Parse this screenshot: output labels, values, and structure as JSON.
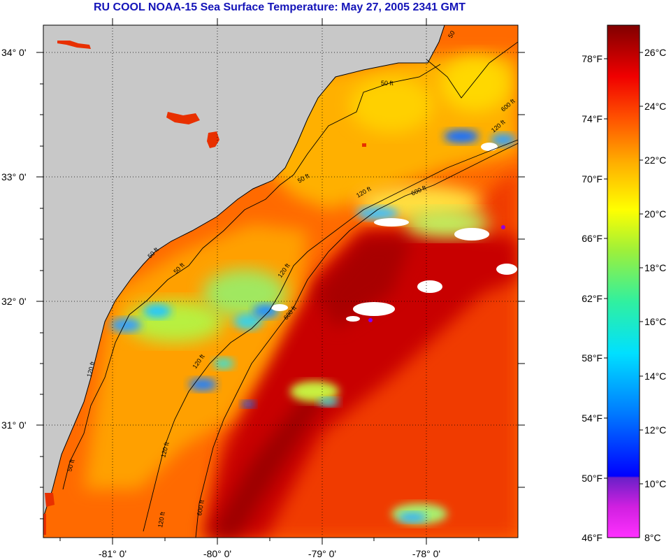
{
  "title": "RU COOL  NOAA-15  Sea Surface Temperature:  May 27, 2005 2341 GMT",
  "map": {
    "lat_labels": [
      "34° 0'",
      "33° 0'",
      "32° 0'",
      "31° 0'"
    ],
    "lon_labels": [
      "-81° 0'",
      "-80° 0'",
      "-79° 0'",
      "-78° 0'"
    ],
    "contour_labels": [
      "50 ft",
      "50 ft",
      "50 ft",
      "120 ft",
      "600 ft",
      "120 ft",
      "600 ft",
      "120 ft",
      "50 ft",
      "120 ft",
      "120 ft",
      "50 ft",
      "120 ft",
      "600 ft",
      "120 ft",
      "600 ft",
      "50"
    ]
  },
  "colorbar": {
    "fahrenheit_labels": [
      "78°F",
      "74°F",
      "70°F",
      "66°F",
      "62°F",
      "58°F",
      "54°F",
      "50°F",
      "46°F"
    ],
    "celsius_labels": [
      "26°C",
      "24°C",
      "22°C",
      "20°C",
      "18°C",
      "16°C",
      "14°C",
      "12°C",
      "10°C",
      "8°C"
    ]
  },
  "colors": {
    "land": "#c8c8c8",
    "title": "#1414b8",
    "shelf_water": "#ff8c00",
    "gulf_stream": "#b40000",
    "cloud": "#ffffff"
  }
}
